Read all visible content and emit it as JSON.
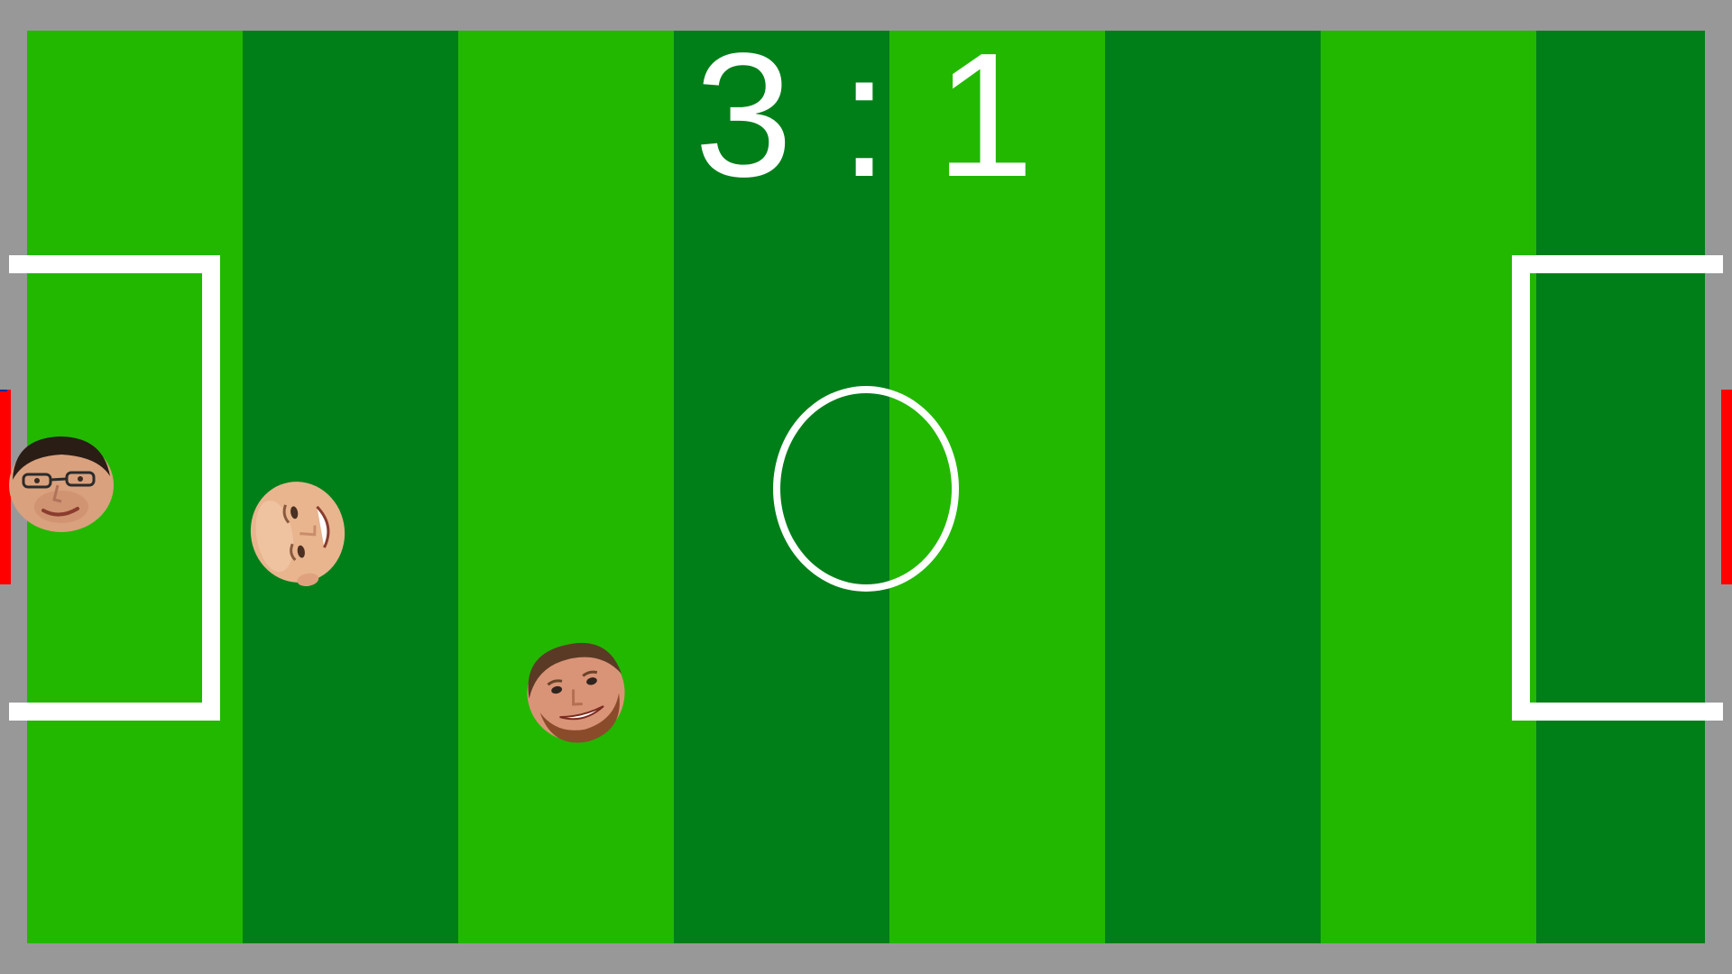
{
  "score": {
    "left": "3",
    "separator": ":",
    "right": "1"
  },
  "field": {
    "stripe_colors": [
      "#22b800",
      "#007f19",
      "#22b800",
      "#007f19",
      "#22b800",
      "#007f19",
      "#22b800",
      "#007f19"
    ],
    "line_color": "#ffffff",
    "border_color": "#989898",
    "goal_color": "#ff0000"
  },
  "players": [
    {
      "id": "player-1",
      "icon": "player-head-glasses-icon",
      "team": "left"
    },
    {
      "id": "player-2",
      "icon": "player-head-bald-icon",
      "team": "left"
    },
    {
      "id": "player-3",
      "icon": "player-head-bearded-icon",
      "team": "right"
    }
  ]
}
